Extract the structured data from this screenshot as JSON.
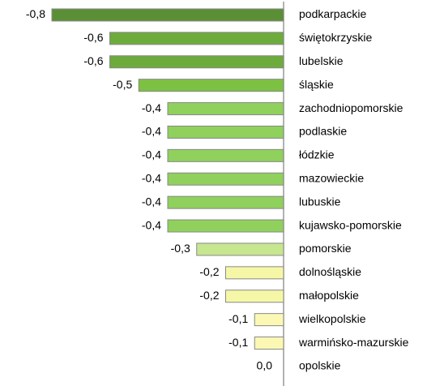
{
  "chart_data": {
    "type": "bar",
    "orientation": "horizontal",
    "categories": [
      "podkarpackie",
      "świętokrzyskie",
      "lubelskie",
      "śląskie",
      "zachodniopomorskie",
      "podlaskie",
      "łódzkie",
      "mazowieckie",
      "lubuskie",
      "kujawsko-pomorskie",
      "pomorskie",
      "dolnośląskie",
      "małopolskie",
      "wielkopolskie",
      "warmińsko-mazurskie",
      "opolskie"
    ],
    "values": [
      -0.8,
      -0.6,
      -0.6,
      -0.5,
      -0.4,
      -0.4,
      -0.4,
      -0.4,
      -0.4,
      -0.4,
      -0.3,
      -0.2,
      -0.2,
      -0.1,
      -0.1,
      0.0
    ],
    "value_labels": [
      "-0,8",
      "-0,6",
      "-0,6",
      "-0,5",
      "-0,4",
      "-0,4",
      "-0,4",
      "-0,4",
      "-0,4",
      "-0,4",
      "-0,3",
      "-0,2",
      "-0,2",
      "-0,1",
      "-0,1",
      "0,0"
    ],
    "colors": [
      "#5b8f35",
      "#6eab3d",
      "#6eab3d",
      "#7cc142",
      "#90d05c",
      "#90d05c",
      "#90d05c",
      "#90d05c",
      "#90d05c",
      "#90d05c",
      "#c6e690",
      "#f5f7a6",
      "#f5f7a6",
      "#fbf8b4",
      "#fbf8b4",
      "#fbf8b4"
    ],
    "xlim": [
      -0.8,
      0
    ]
  }
}
